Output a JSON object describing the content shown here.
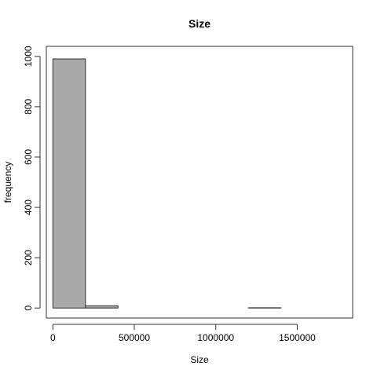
{
  "chart_data": {
    "type": "bar",
    "title": "Size",
    "xlabel": "Size",
    "ylabel": "frequency",
    "bin_edges": [
      0,
      200000,
      400000,
      600000,
      800000,
      1000000,
      1200000,
      1400000,
      1600000,
      1800000
    ],
    "values": [
      990,
      9,
      0,
      0,
      0,
      0,
      1,
      0,
      0
    ],
    "xlim": [
      -40000,
      1840000
    ],
    "ylim": [
      -40,
      1040
    ],
    "xticks": [
      0,
      500000,
      1000000,
      1500000
    ],
    "yticks": [
      0,
      200,
      400,
      600,
      800,
      1000
    ],
    "bar_fill": "#a9a9a9",
    "bar_stroke": "#333333",
    "grid": false,
    "legend": "none"
  }
}
